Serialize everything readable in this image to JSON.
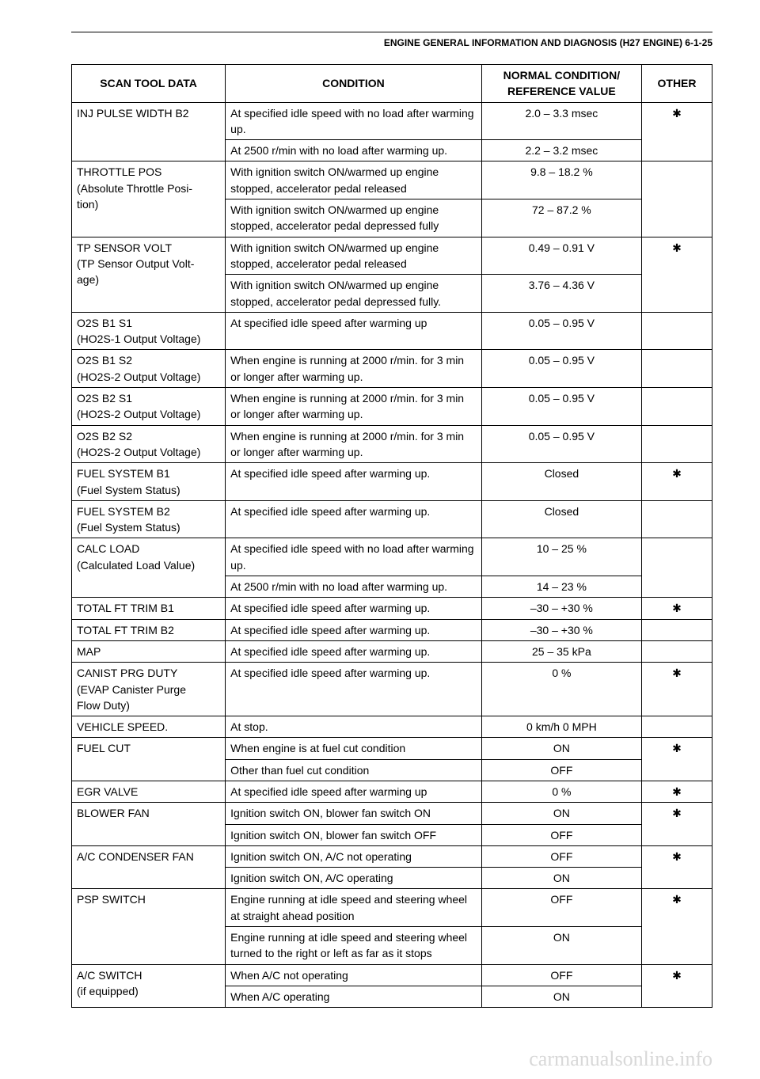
{
  "header": {
    "title": "ENGINE GENERAL INFORMATION AND DIAGNOSIS (H27 ENGINE) 6-1-25"
  },
  "table": {
    "columns": {
      "c1": "SCAN TOOL DATA",
      "c2": "CONDITION",
      "c3_l1": "NORMAL CONDITION/",
      "c3_l2": "REFERENCE VALUE",
      "c4": "OTHER"
    }
  },
  "rows": {
    "r1": {
      "scan": "INJ PULSE WIDTH B2",
      "cond": "At specified idle speed with no load after warming up.",
      "val": "2.0 – 3.3 msec",
      "other": "✱"
    },
    "r1b": {
      "cond": "At 2500 r/min with no load after warming up.",
      "val": "2.2 – 3.2 msec"
    },
    "r2": {
      "scan_l1": "THROTTLE POS",
      "scan_l2": "(Absolute Throttle Posi-",
      "scan_l3": "tion)",
      "cond": "With ignition switch ON/warmed up engine stopped, accelerator pedal released",
      "val": "9.8 – 18.2 %",
      "other": ""
    },
    "r2b": {
      "cond": "With ignition switch ON/warmed up engine stopped, accelerator pedal depressed fully",
      "val": "72 – 87.2 %"
    },
    "r3": {
      "scan_l1": "TP SENSOR VOLT",
      "scan_l2": "(TP Sensor Output Volt-",
      "scan_l3": "age)",
      "cond": "With ignition switch ON/warmed up engine stopped, accelerator pedal released",
      "val": "0.49 – 0.91 V",
      "other": "✱"
    },
    "r3b": {
      "cond": "With ignition switch ON/warmed up engine stopped, accelerator pedal depressed fully.",
      "val": "3.76 – 4.36 V"
    },
    "r4": {
      "scan_l1": "O2S B1 S1",
      "scan_l2": "(HO2S-1 Output Voltage)",
      "cond": "At specified idle speed after warming up",
      "val": "0.05 – 0.95 V",
      "other": ""
    },
    "r5": {
      "scan_l1": "O2S B1 S2",
      "scan_l2": "(HO2S-2 Output Voltage)",
      "cond": "When engine is running at 2000 r/min. for 3 min or longer after warming up.",
      "val": "0.05 – 0.95 V",
      "other": ""
    },
    "r6": {
      "scan_l1": "O2S B2 S1",
      "scan_l2": "(HO2S-2 Output Voltage)",
      "cond": "When engine is running at 2000 r/min. for 3 min or longer after warming up.",
      "val": "0.05 – 0.95 V",
      "other": ""
    },
    "r7": {
      "scan_l1": "O2S B2 S2",
      "scan_l2": "(HO2S-2 Output Voltage)",
      "cond": "When engine is running at 2000 r/min. for 3 min or longer after warming up.",
      "val": "0.05 – 0.95 V",
      "other": ""
    },
    "r8": {
      "scan_l1": "FUEL SYSTEM B1",
      "scan_l2": "(Fuel System Status)",
      "cond": "At specified idle speed after warming up.",
      "val": "Closed",
      "other": "✱"
    },
    "r9": {
      "scan_l1": "FUEL SYSTEM B2",
      "scan_l2": "(Fuel System Status)",
      "cond": "At specified idle speed after warming up.",
      "val": "Closed",
      "other": ""
    },
    "r10": {
      "scan_l1": "CALC LOAD",
      "scan_l2": "(Calculated Load Value)",
      "cond": "At specified idle speed with no load after warming up.",
      "val": "10 – 25 %",
      "other": ""
    },
    "r10b": {
      "cond": "At 2500 r/min with no load after warming up.",
      "val": "14 – 23 %"
    },
    "r11": {
      "scan": "TOTAL FT TRIM B1",
      "cond": "At specified idle speed after warming up.",
      "val": "–30 – +30 %",
      "other": "✱"
    },
    "r12": {
      "scan": "TOTAL FT TRIM B2",
      "cond": "At specified idle speed after warming up.",
      "val": "–30 – +30 %",
      "other": ""
    },
    "r13": {
      "scan": "MAP",
      "cond": "At specified idle speed after warming up.",
      "val": "25 – 35 kPa",
      "other": ""
    },
    "r14": {
      "scan_l1": "CANIST PRG DUTY",
      "scan_l2": "(EVAP Canister Purge",
      "scan_l3": "Flow Duty)",
      "cond": "At specified idle speed after warming up.",
      "val": "0 %",
      "other": "✱"
    },
    "r15": {
      "scan": "VEHICLE SPEED.",
      "cond": "At stop.",
      "val": "0 km/h 0 MPH",
      "other": ""
    },
    "r16": {
      "scan": "FUEL CUT",
      "cond": "When engine is at fuel cut condition",
      "val": "ON",
      "other": "✱"
    },
    "r16b": {
      "cond": "Other than fuel cut condition",
      "val": "OFF"
    },
    "r17": {
      "scan": "EGR VALVE",
      "cond": "At specified idle speed after warming up",
      "val": "0 %",
      "other": "✱"
    },
    "r18": {
      "scan": "BLOWER FAN",
      "cond": "Ignition switch ON, blower fan switch ON",
      "val": "ON",
      "other": "✱"
    },
    "r18b": {
      "cond": "Ignition switch ON, blower fan switch OFF",
      "val": "OFF"
    },
    "r19": {
      "scan": "A/C CONDENSER FAN",
      "cond": "Ignition switch ON, A/C not operating",
      "val": "OFF",
      "other": "✱"
    },
    "r19b": {
      "cond": "Ignition switch ON, A/C operating",
      "val": "ON"
    },
    "r20": {
      "scan": "PSP SWITCH",
      "cond": "Engine running at idle speed and steering wheel at straight ahead position",
      "val": "OFF",
      "other": "✱"
    },
    "r20b": {
      "cond": "Engine running at idle speed and steering wheel turned to the right or left as far as it stops",
      "val": "ON"
    },
    "r21": {
      "scan_l1": "A/C SWITCH",
      "scan_l2": "(if equipped)",
      "cond": "When A/C not operating",
      "val": "OFF",
      "other": "✱"
    },
    "r21b": {
      "cond": "When A/C operating",
      "val": "ON"
    }
  },
  "watermark": "carmanualsonline.info"
}
